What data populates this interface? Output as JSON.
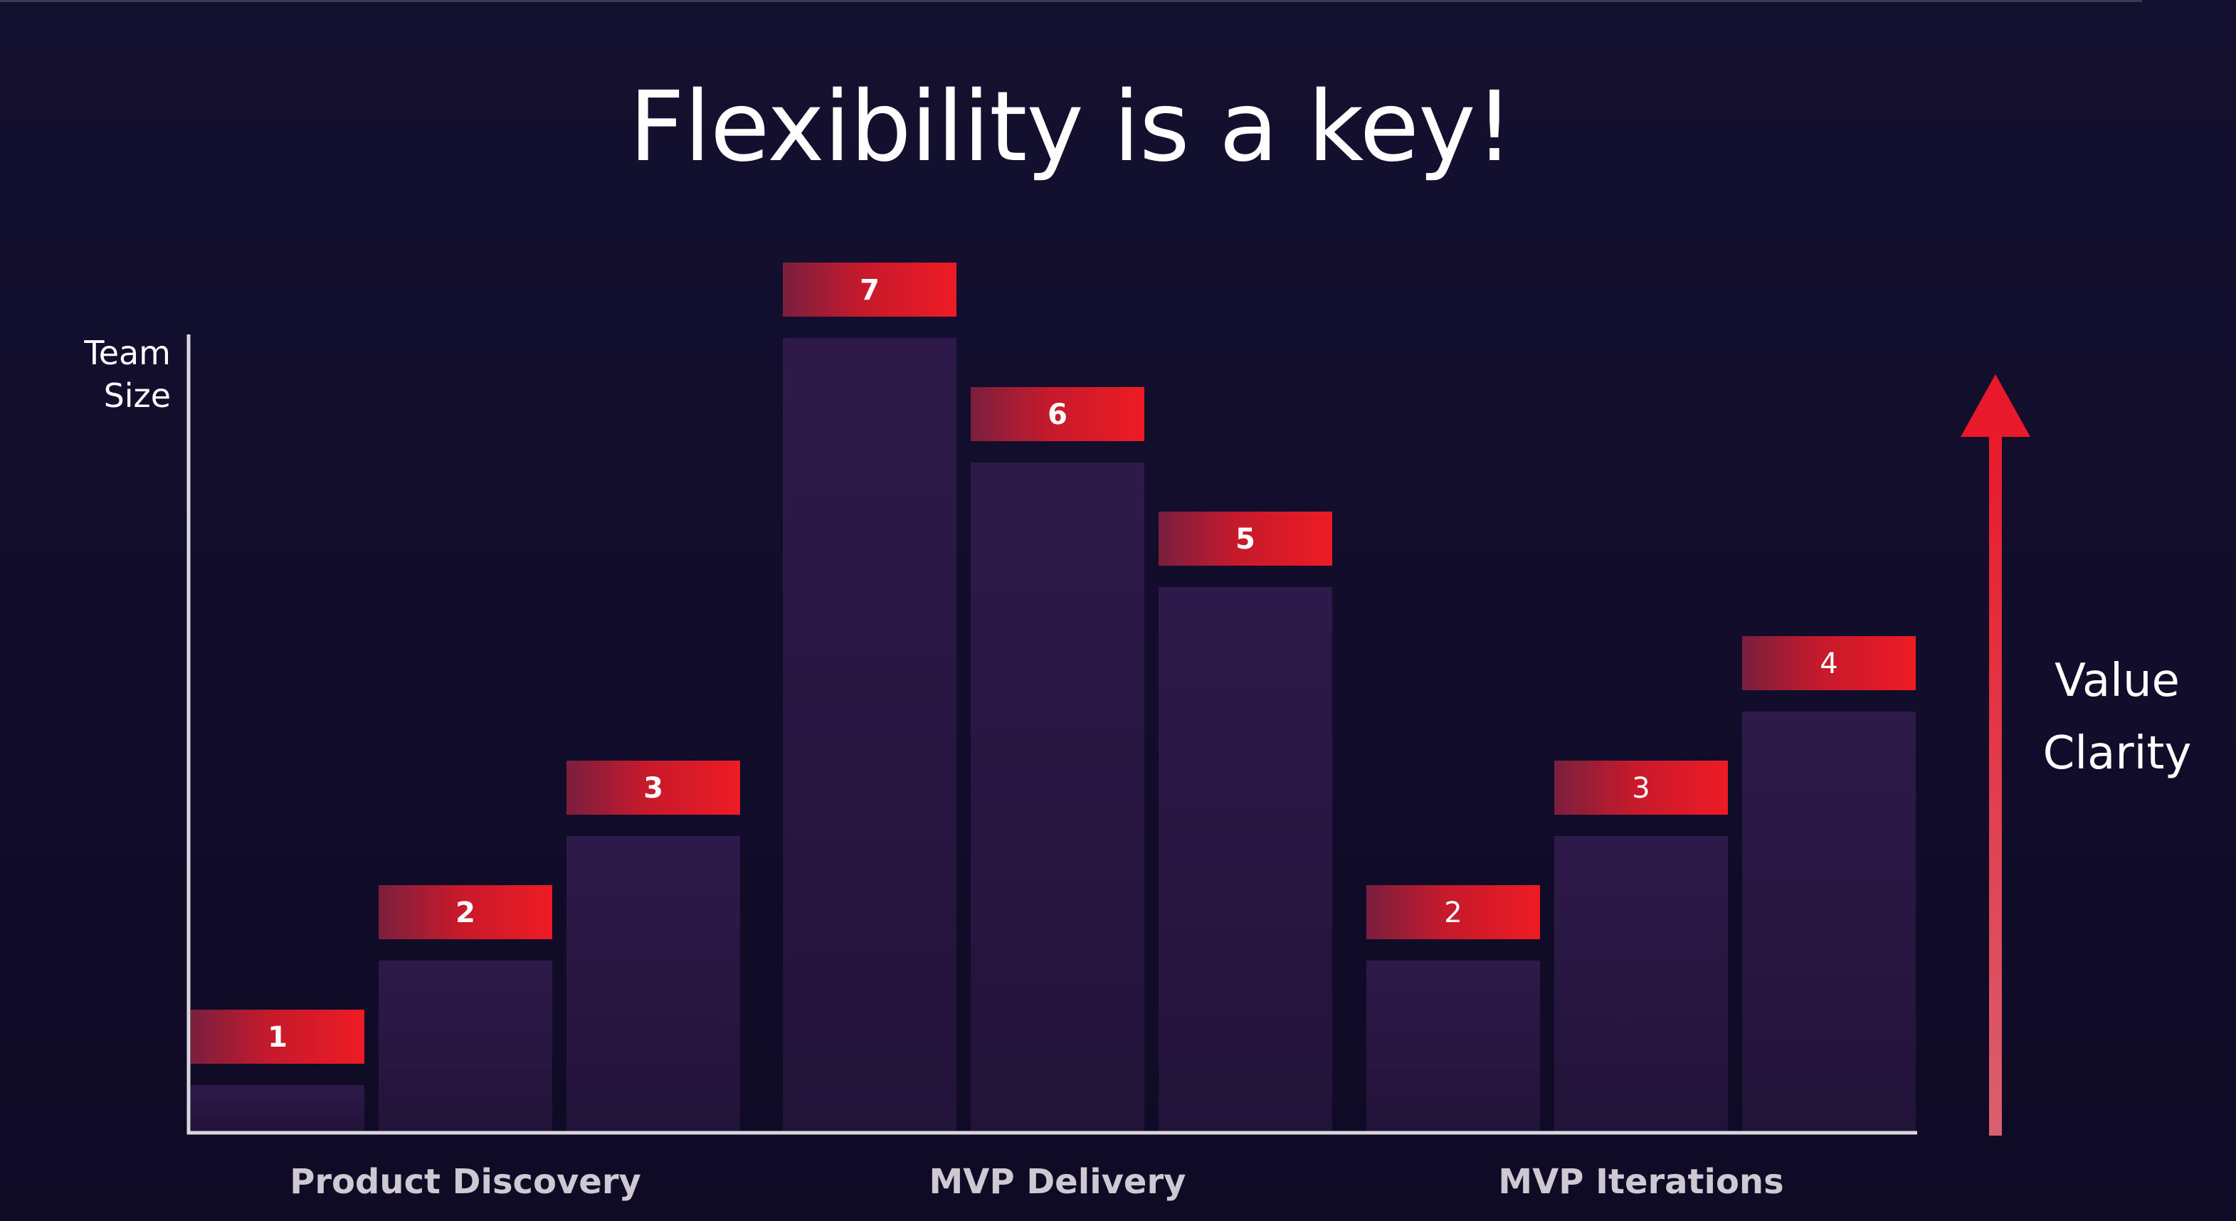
{
  "chart_data": {
    "type": "bar",
    "title": "Flexibility is a key!",
    "ylabel": [
      "Team",
      "Size"
    ],
    "right_label": [
      "Value",
      "Clarity"
    ],
    "ylim": [
      0,
      7
    ],
    "groups": [
      {
        "name": "Product Discovery",
        "values": [
          1,
          2,
          3
        ],
        "labels": [
          "1",
          "2",
          "3"
        ]
      },
      {
        "name": "MVP Delivery",
        "values": [
          7,
          6,
          5
        ],
        "labels": [
          "7",
          "6",
          "5"
        ]
      },
      {
        "name": "MVP Iterations",
        "values": [
          2,
          3,
          4
        ],
        "labels": [
          "2",
          "3",
          "4"
        ]
      }
    ],
    "colors": {
      "bar_top": "#2e1a4a",
      "bar_bottom": "#221339",
      "label_left": "#7a1f3e",
      "label_right": "#ee1b24",
      "axis": "#d9d6de",
      "arrow_top": "#e8192a",
      "arrow_bottom": "#d9606e",
      "group_text": "#cdc8d2"
    }
  }
}
